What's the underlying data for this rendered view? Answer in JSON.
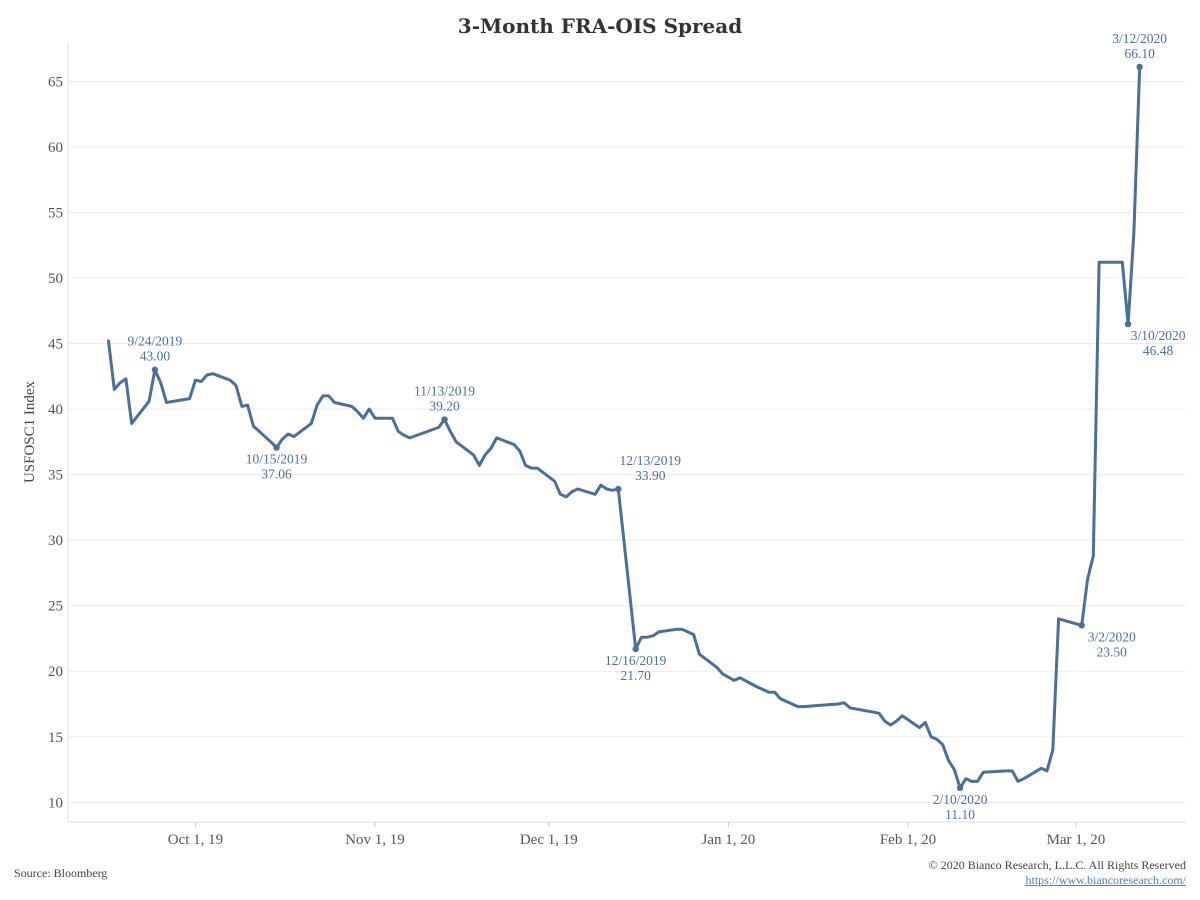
{
  "chart_data": {
    "type": "line",
    "title": "3-Month FRA-OIS Spread",
    "ylabel": "USFOSC1 Index",
    "xlabel": "",
    "x_min": "2019-09-09",
    "x_max": "2020-03-20",
    "ylim": [
      8.5,
      68
    ],
    "y_ticks": [
      10,
      15,
      20,
      25,
      30,
      35,
      40,
      45,
      50,
      55,
      60,
      65
    ],
    "x_ticks": [
      {
        "date": "2019-10-01",
        "label": "Oct 1, 19"
      },
      {
        "date": "2019-11-01",
        "label": "Nov 1, 19"
      },
      {
        "date": "2019-12-01",
        "label": "Dec 1, 19"
      },
      {
        "date": "2020-01-01",
        "label": "Jan 1, 20"
      },
      {
        "date": "2020-02-01",
        "label": "Feb 1, 20"
      },
      {
        "date": "2020-03-01",
        "label": "Mar 1, 20"
      }
    ],
    "grid": true,
    "line_color": "#4a6f9a",
    "series": [
      {
        "name": "",
        "points": [
          [
            "2019-09-16",
            45.2
          ],
          [
            "2019-09-17",
            41.5
          ],
          [
            "2019-09-18",
            42.0
          ],
          [
            "2019-09-19",
            42.3
          ],
          [
            "2019-09-20",
            38.9
          ],
          [
            "2019-09-23",
            40.6
          ],
          [
            "2019-09-24",
            43.0
          ],
          [
            "2019-09-25",
            42.0
          ],
          [
            "2019-09-26",
            40.5
          ],
          [
            "2019-09-30",
            40.8
          ],
          [
            "2019-10-01",
            42.2
          ],
          [
            "2019-10-02",
            42.1
          ],
          [
            "2019-10-03",
            42.6
          ],
          [
            "2019-10-04",
            42.7
          ],
          [
            "2019-10-07",
            42.2
          ],
          [
            "2019-10-08",
            41.8
          ],
          [
            "2019-10-09",
            40.2
          ],
          [
            "2019-10-10",
            40.3
          ],
          [
            "2019-10-11",
            38.7
          ],
          [
            "2019-10-14",
            37.5
          ],
          [
            "2019-10-15",
            37.06
          ],
          [
            "2019-10-16",
            37.7
          ],
          [
            "2019-10-17",
            38.1
          ],
          [
            "2019-10-18",
            37.9
          ],
          [
            "2019-10-21",
            38.9
          ],
          [
            "2019-10-22",
            40.3
          ],
          [
            "2019-10-23",
            41.0
          ],
          [
            "2019-10-24",
            41.0
          ],
          [
            "2019-10-25",
            40.5
          ],
          [
            "2019-10-28",
            40.2
          ],
          [
            "2019-10-29",
            39.8
          ],
          [
            "2019-10-30",
            39.3
          ],
          [
            "2019-10-31",
            40.0
          ],
          [
            "2019-11-01",
            39.3
          ],
          [
            "2019-11-04",
            39.3
          ],
          [
            "2019-11-05",
            38.3
          ],
          [
            "2019-11-06",
            38.0
          ],
          [
            "2019-11-07",
            37.8
          ],
          [
            "2019-11-12",
            38.6
          ],
          [
            "2019-11-13",
            39.2
          ],
          [
            "2019-11-14",
            38.3
          ],
          [
            "2019-11-15",
            37.5
          ],
          [
            "2019-11-18",
            36.5
          ],
          [
            "2019-11-19",
            35.7
          ],
          [
            "2019-11-20",
            36.5
          ],
          [
            "2019-11-21",
            37.0
          ],
          [
            "2019-11-22",
            37.8
          ],
          [
            "2019-11-25",
            37.3
          ],
          [
            "2019-11-26",
            36.8
          ],
          [
            "2019-11-27",
            35.7
          ],
          [
            "2019-11-28",
            35.5
          ],
          [
            "2019-11-29",
            35.5
          ],
          [
            "2019-12-02",
            34.5
          ],
          [
            "2019-12-03",
            33.5
          ],
          [
            "2019-12-04",
            33.3
          ],
          [
            "2019-12-05",
            33.7
          ],
          [
            "2019-12-06",
            33.9
          ],
          [
            "2019-12-09",
            33.5
          ],
          [
            "2019-12-10",
            34.2
          ],
          [
            "2019-12-11",
            33.9
          ],
          [
            "2019-12-12",
            33.8
          ],
          [
            "2019-12-13",
            33.9
          ],
          [
            "2019-12-16",
            21.7
          ],
          [
            "2019-12-17",
            22.6
          ],
          [
            "2019-12-18",
            22.6
          ],
          [
            "2019-12-19",
            22.7
          ],
          [
            "2019-12-20",
            23.0
          ],
          [
            "2019-12-23",
            23.2
          ],
          [
            "2019-12-24",
            23.2
          ],
          [
            "2019-12-26",
            22.8
          ],
          [
            "2019-12-27",
            21.3
          ],
          [
            "2019-12-30",
            20.3
          ],
          [
            "2019-12-31",
            19.8
          ],
          [
            "2020-01-02",
            19.3
          ],
          [
            "2020-01-03",
            19.5
          ],
          [
            "2020-01-06",
            18.8
          ],
          [
            "2020-01-07",
            18.6
          ],
          [
            "2020-01-08",
            18.4
          ],
          [
            "2020-01-09",
            18.4
          ],
          [
            "2020-01-10",
            17.9
          ],
          [
            "2020-01-13",
            17.3
          ],
          [
            "2020-01-14",
            17.3
          ],
          [
            "2020-01-17",
            17.4
          ],
          [
            "2020-01-20",
            17.5
          ],
          [
            "2020-01-21",
            17.6
          ],
          [
            "2020-01-22",
            17.2
          ],
          [
            "2020-01-27",
            16.8
          ],
          [
            "2020-01-28",
            16.2
          ],
          [
            "2020-01-29",
            15.9
          ],
          [
            "2020-01-30",
            16.2
          ],
          [
            "2020-01-31",
            16.6
          ],
          [
            "2020-02-03",
            15.7
          ],
          [
            "2020-02-04",
            16.1
          ],
          [
            "2020-02-05",
            15.0
          ],
          [
            "2020-02-06",
            14.8
          ],
          [
            "2020-02-07",
            14.4
          ],
          [
            "2020-02-08",
            13.2
          ],
          [
            "2020-02-09",
            12.5
          ],
          [
            "2020-02-10",
            11.1
          ],
          [
            "2020-02-11",
            11.8
          ],
          [
            "2020-02-12",
            11.6
          ],
          [
            "2020-02-13",
            11.6
          ],
          [
            "2020-02-14",
            12.3
          ],
          [
            "2020-02-18",
            12.4
          ],
          [
            "2020-02-19",
            12.4
          ],
          [
            "2020-02-20",
            11.6
          ],
          [
            "2020-02-21",
            11.8
          ],
          [
            "2020-02-24",
            12.6
          ],
          [
            "2020-02-25",
            12.4
          ],
          [
            "2020-02-26",
            14.0
          ],
          [
            "2020-02-27",
            24.0
          ],
          [
            "2020-03-02",
            23.5
          ],
          [
            "2020-03-03",
            27.0
          ],
          [
            "2020-03-04",
            28.8
          ],
          [
            "2020-03-05",
            51.2
          ],
          [
            "2020-03-06",
            51.2
          ],
          [
            "2020-03-09",
            51.2
          ],
          [
            "2020-03-10",
            46.48
          ],
          [
            "2020-03-11",
            53.5
          ],
          [
            "2020-03-12",
            66.1
          ]
        ]
      }
    ],
    "annotations": [
      {
        "date": "2019-09-24",
        "value": 43.0,
        "label_date": "9/24/2019",
        "label_value": "43.00",
        "pos": "above"
      },
      {
        "date": "2019-10-15",
        "value": 37.06,
        "label_date": "10/15/2019",
        "label_value": "37.06",
        "pos": "below"
      },
      {
        "date": "2019-11-13",
        "value": 39.2,
        "label_date": "11/13/2019",
        "label_value": "39.20",
        "pos": "above"
      },
      {
        "date": "2019-12-13",
        "value": 33.9,
        "label_date": "12/13/2019",
        "label_value": "33.90",
        "pos": "above-right"
      },
      {
        "date": "2019-12-16",
        "value": 21.7,
        "label_date": "12/16/2019",
        "label_value": "21.70",
        "pos": "below"
      },
      {
        "date": "2020-02-10",
        "value": 11.1,
        "label_date": "2/10/2020",
        "label_value": "11.10",
        "pos": "below"
      },
      {
        "date": "2020-03-02",
        "value": 23.5,
        "label_date": "3/2/2020",
        "label_value": "23.50",
        "pos": "below-right"
      },
      {
        "date": "2020-03-10",
        "value": 46.48,
        "label_date": "3/10/2020",
        "label_value": "46.48",
        "pos": "below-right"
      },
      {
        "date": "2020-03-12",
        "value": 66.1,
        "label_date": "3/12/2020",
        "label_value": "66.10",
        "pos": "above"
      }
    ]
  },
  "footer": {
    "source": "Source: Bloomberg",
    "copyright": "© 2020 Bianco Research, L.L.C. All Rights Reserved",
    "url": "https://www.biancoresearch.com/"
  }
}
